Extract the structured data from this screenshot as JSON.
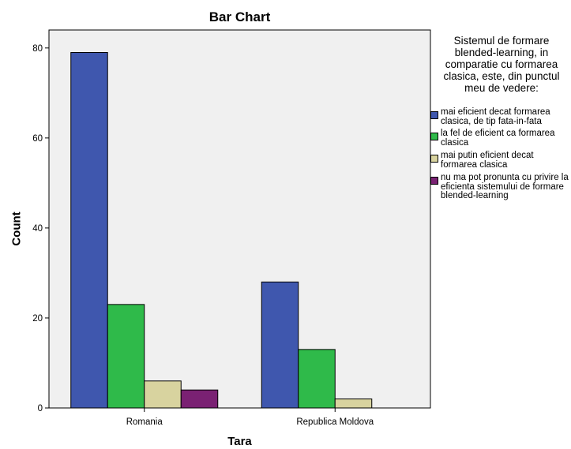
{
  "chart_data": {
    "type": "bar",
    "title": "Bar Chart",
    "xlabel": "Tara",
    "ylabel": "Count",
    "categories": [
      "Romania",
      "Republica Moldova"
    ],
    "ylim": [
      0,
      84
    ],
    "yticks": [
      0,
      20,
      40,
      60,
      80
    ],
    "grid": false,
    "legend_position": "right",
    "legend_title": "Sistemul de formare blended-learning, in comparatie cu formarea clasica, este, din punctul meu de vedere:",
    "series": [
      {
        "name": "mai eficient decat formarea clasica, de tip fata-in-fata",
        "color": "#3f57ae",
        "values": [
          79,
          28
        ]
      },
      {
        "name": "la fel de eficient ca formarea clasica",
        "color": "#2fba4a",
        "values": [
          23,
          13
        ]
      },
      {
        "name": "mai putin eficient decat formarea clasica",
        "color": "#d8d39f",
        "values": [
          6,
          2
        ]
      },
      {
        "name": "nu ma pot pronunta cu privire la eficienta sistemului de formare blended-learning",
        "color": "#7a2173",
        "values": [
          4,
          0
        ]
      }
    ]
  }
}
